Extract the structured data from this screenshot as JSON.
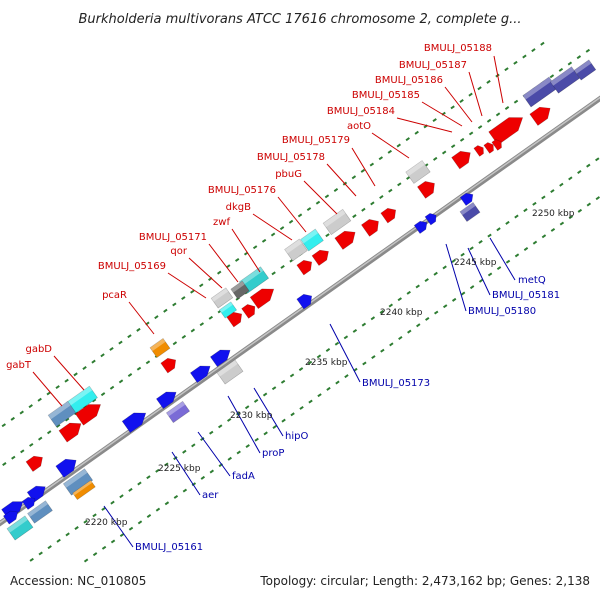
{
  "title": "Burkholderia multivorans ATCC 17616 chromosome 2, complete g...",
  "footer": {
    "accession": "Accession: NC_010805",
    "topology": "Topology: circular; Length: 2,473,162 bp; Genes: 2,138"
  },
  "colors": {
    "forward_label": "#cc0000",
    "reverse_label": "#0000aa",
    "backbone": "#8a8a8a",
    "tick": "#2e7d32"
  },
  "ticks": [
    "2220 kbp",
    "2225 kbp",
    "2230 kbp",
    "2235 kbp",
    "2240 kbp",
    "2245 kbp",
    "2250 kbp"
  ],
  "forward_labels": [
    "BMULJ_05188",
    "BMULJ_05187",
    "BMULJ_05186",
    "BMULJ_05185",
    "BMULJ_05184",
    "aotO",
    "BMULJ_05179",
    "BMULJ_05178",
    "pbuG",
    "BMULJ_05176",
    "dkgB",
    "zwf",
    "BMULJ_05171",
    "qor",
    "BMULJ_05169",
    "pcaR",
    "gabD",
    "gabT"
  ],
  "reverse_labels": [
    "metQ",
    "BMULJ_05181",
    "BMULJ_05180",
    "BMULJ_05173",
    "hipO",
    "proP",
    "fadA",
    "aer",
    "BMULJ_05161"
  ]
}
